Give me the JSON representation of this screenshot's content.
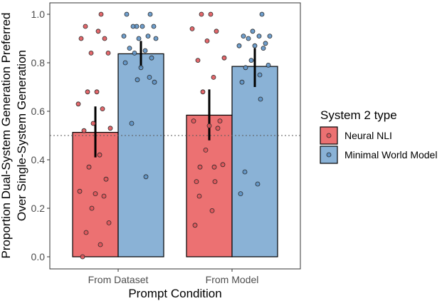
{
  "chart_data": {
    "type": "bar",
    "title": "",
    "xlabel": "Prompt Condition",
    "ylabel_lines": [
      "Proportion Dual-System Generation Preferred",
      "Over Single-System Generation"
    ],
    "categories": [
      "From Dataset",
      "From Model"
    ],
    "ylim": [
      -0.05,
      1.05
    ],
    "yticks": [
      "0.0",
      "0.2",
      "0.4",
      "0.6",
      "0.8",
      "1.0"
    ],
    "reference_line": 0.5,
    "legend": {
      "title": "System 2 type",
      "position": "right"
    },
    "series": [
      {
        "name": "Neural NLI",
        "color": "#ec7172",
        "point_color": "#e0575b",
        "values": [
          0.513,
          0.584
        ],
        "error": [
          [
            0.41,
            0.62
          ],
          [
            0.48,
            0.69
          ]
        ],
        "points": [
          [
            1.0,
            0.95,
            0.93,
            0.9,
            0.9,
            0.84,
            0.84,
            0.68,
            0.68,
            0.63,
            0.61,
            0.55,
            0.53,
            0.52,
            0.42,
            0.37,
            0.32,
            0.27,
            0.26,
            0.25,
            0.2,
            0.14,
            0.1,
            0.05,
            0.0
          ],
          [
            1.0,
            1.0,
            0.94,
            0.93,
            0.89,
            0.82,
            0.81,
            0.74,
            0.68,
            0.56,
            0.56,
            0.54,
            0.53,
            0.44,
            0.38,
            0.37,
            0.37,
            0.31,
            0.31,
            0.25,
            0.19,
            0.13
          ]
        ]
      },
      {
        "name": "Minimal World Model",
        "color": "#8ab2d6",
        "point_color": "#5f93c7",
        "values": [
          0.837,
          0.785
        ],
        "error": [
          [
            0.78,
            0.89
          ],
          [
            0.7,
            0.86
          ]
        ],
        "points": [
          [
            1.0,
            1.0,
            0.95,
            0.95,
            0.95,
            0.95,
            0.91,
            0.91,
            0.9,
            0.9,
            0.86,
            0.85,
            0.84,
            0.82,
            0.8,
            0.78,
            0.74,
            0.73,
            0.72,
            0.55,
            0.33
          ],
          [
            1.0,
            0.93,
            0.91,
            0.91,
            0.91,
            0.9,
            0.88,
            0.87,
            0.87,
            0.86,
            0.81,
            0.79,
            0.78,
            0.75,
            0.72,
            0.65,
            0.35,
            0.3,
            0.26
          ]
        ]
      }
    ]
  }
}
